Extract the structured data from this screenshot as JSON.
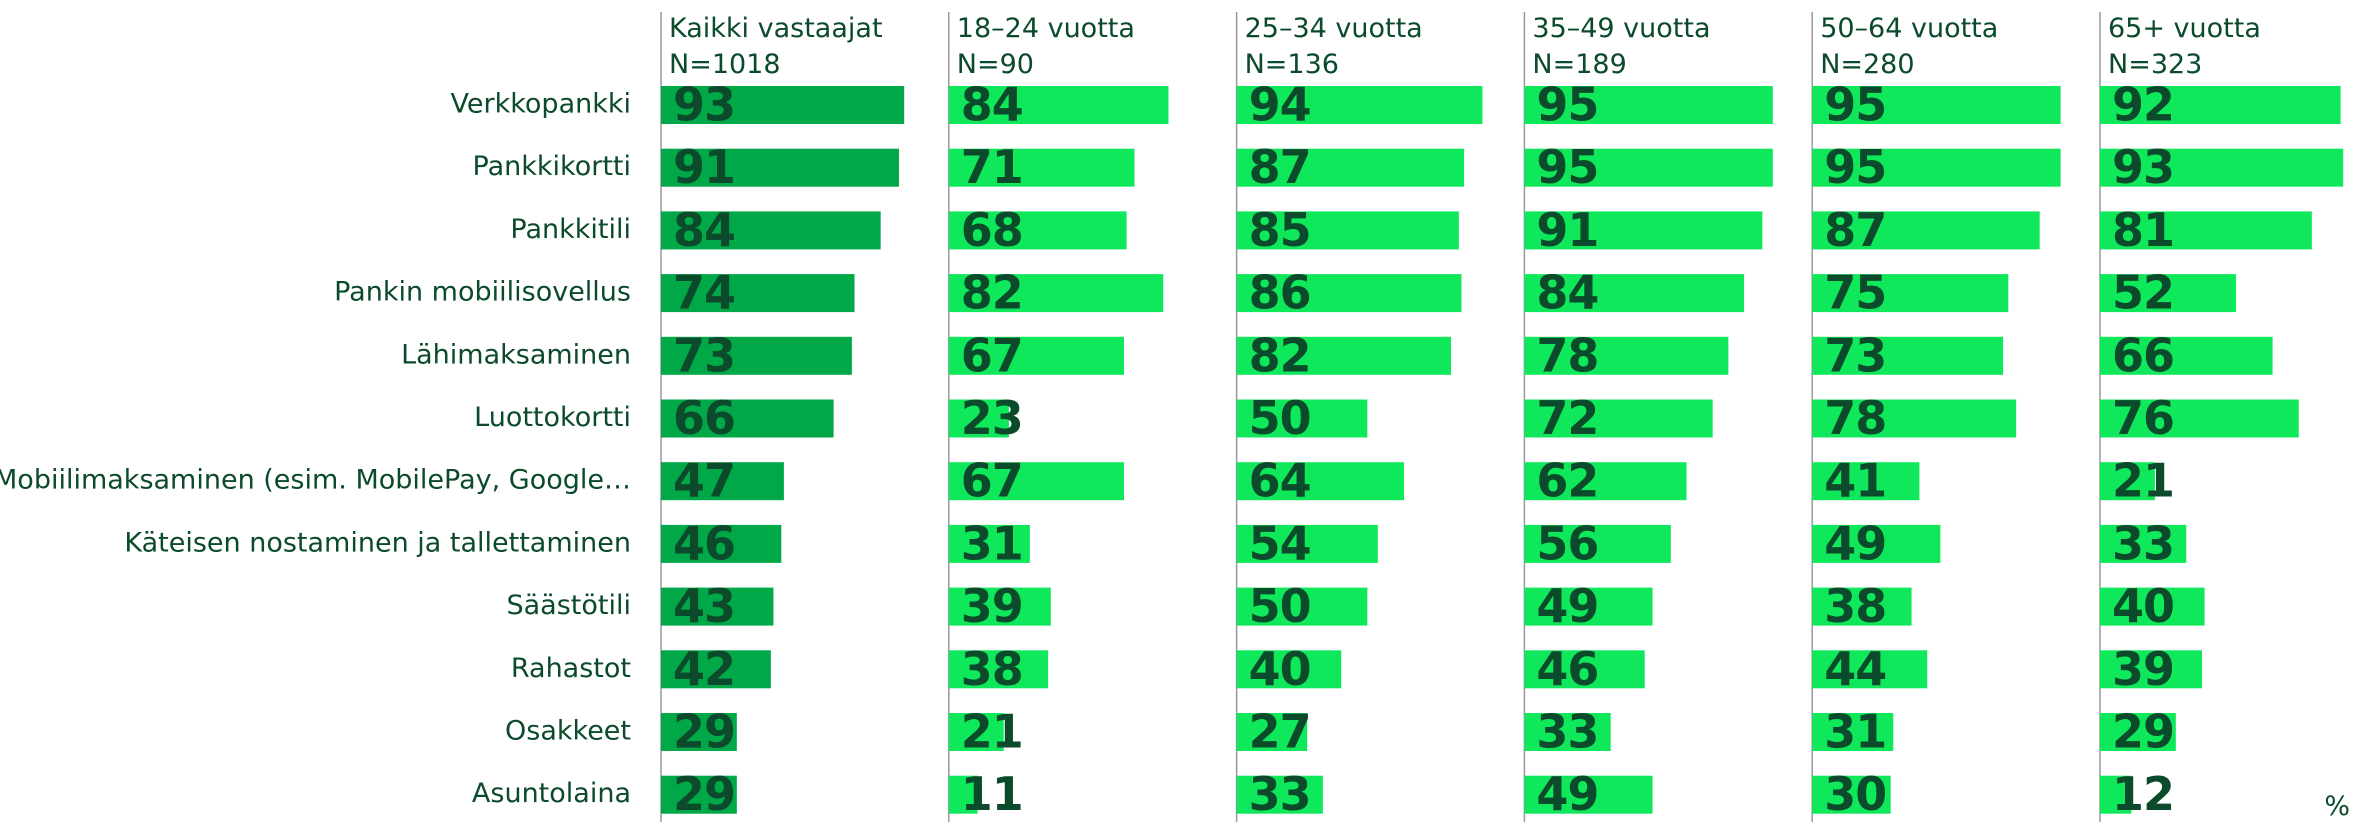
{
  "chart_data": {
    "type": "bar",
    "orientation": "horizontal",
    "unit_label": "%",
    "categories": [
      "Verkkopankki",
      "Pankkikortti",
      "Pankkitili",
      "Pankin mobiilisovellus",
      "Lähimaksaminen",
      "Luottokortti",
      "Mobiilimaksaminen (esim. MobilePay, Google…",
      "Käteisen nostaminen ja tallettaminen",
      "Säästötili",
      "Rahastot",
      "Osakkeet",
      "Asuntolaina"
    ],
    "xlim": [
      0,
      100
    ],
    "series": [
      {
        "name": "Kaikki vastaajat",
        "subtitle": "N=1018",
        "color": "#00a847",
        "values": [
          93,
          91,
          84,
          74,
          73,
          66,
          47,
          46,
          43,
          42,
          29,
          29
        ]
      },
      {
        "name": "18–24 vuotta",
        "subtitle": "N=90",
        "color": "#10e85c",
        "values": [
          84,
          71,
          68,
          82,
          67,
          23,
          67,
          31,
          39,
          38,
          21,
          11
        ]
      },
      {
        "name": "25–34 vuotta",
        "subtitle": "N=136",
        "color": "#10e85c",
        "values": [
          94,
          87,
          85,
          86,
          82,
          50,
          64,
          54,
          50,
          40,
          27,
          33
        ]
      },
      {
        "name": "35–49 vuotta",
        "subtitle": "N=189",
        "color": "#10e85c",
        "values": [
          95,
          95,
          91,
          84,
          78,
          72,
          62,
          56,
          49,
          46,
          33,
          49
        ]
      },
      {
        "name": "50–64 vuotta",
        "subtitle": "N=280",
        "color": "#10e85c",
        "values": [
          95,
          95,
          87,
          75,
          73,
          78,
          41,
          49,
          38,
          44,
          31,
          30
        ]
      },
      {
        "name": "65+ vuotta",
        "subtitle": "N=323",
        "color": "#10e85c",
        "values": [
          92,
          93,
          81,
          52,
          66,
          76,
          21,
          33,
          40,
          39,
          29,
          12
        ]
      }
    ]
  }
}
